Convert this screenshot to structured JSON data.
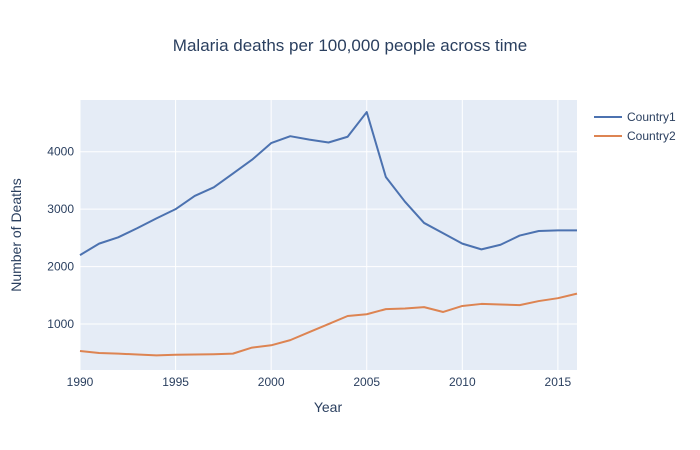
{
  "chart_data": {
    "type": "line",
    "title": "Malaria deaths per 100,000 people across time",
    "xlabel": "Year",
    "ylabel": "Number of Deaths",
    "xlim": [
      1990,
      2016
    ],
    "ylim": [
      200,
      4900
    ],
    "x_ticks": [
      1990,
      1995,
      2000,
      2005,
      2010,
      2015
    ],
    "y_ticks": [
      1000,
      2000,
      3000,
      4000
    ],
    "grid": true,
    "legend_position": "top-right",
    "plot_background": "#e5ecf6",
    "x": [
      1990,
      1991,
      1992,
      1993,
      1994,
      1995,
      1996,
      1997,
      1998,
      1999,
      2000,
      2001,
      2002,
      2003,
      2004,
      2005,
      2006,
      2007,
      2008,
      2009,
      2010,
      2011,
      2012,
      2013,
      2014,
      2015,
      2016
    ],
    "series": [
      {
        "name": "Country1",
        "color": "#4c72b0",
        "values": [
          2200,
          2400,
          2510,
          2670,
          2840,
          3000,
          3230,
          3380,
          3620,
          3860,
          4150,
          4270,
          4210,
          4160,
          4260,
          4690,
          3560,
          3130,
          2760,
          2580,
          2400,
          2300,
          2380,
          2540,
          2620,
          2630,
          2630
        ]
      },
      {
        "name": "Country2",
        "color": "#dd8452",
        "values": [
          530,
          495,
          485,
          470,
          455,
          465,
          470,
          475,
          485,
          590,
          630,
          720,
          860,
          1000,
          1140,
          1170,
          1260,
          1270,
          1295,
          1210,
          1315,
          1350,
          1340,
          1330,
          1400,
          1450,
          1530
        ]
      }
    ]
  }
}
